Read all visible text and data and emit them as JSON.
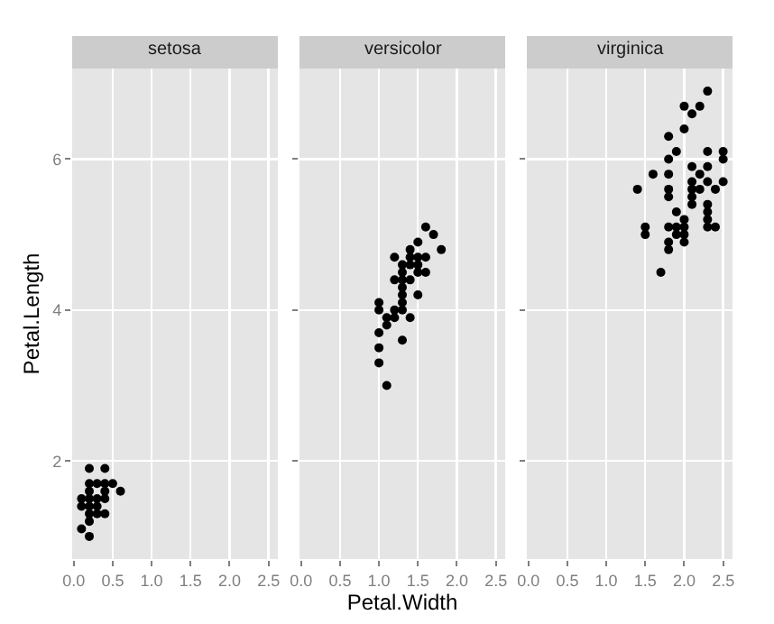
{
  "chart_data": [
    {
      "type": "scatter",
      "title": "setosa",
      "ylabel": "Petal.Length",
      "color": "#000000",
      "marker": "circle",
      "grid": true,
      "legend": false,
      "x": [
        0.1,
        0.1,
        0.1,
        0.2,
        0.2,
        0.2,
        0.2,
        0.2,
        0.2,
        0.2,
        0.2,
        0.3,
        0.3,
        0.3,
        0.3,
        0.4,
        0.4,
        0.4,
        0.4,
        0.4,
        0.5,
        0.6
      ],
      "values": [
        1.1,
        1.4,
        1.5,
        1.0,
        1.2,
        1.3,
        1.4,
        1.5,
        1.6,
        1.7,
        1.9,
        1.3,
        1.4,
        1.5,
        1.7,
        1.3,
        1.5,
        1.6,
        1.7,
        1.9,
        1.7,
        1.6
      ],
      "xlim": [
        -0.02,
        2.62
      ],
      "xticks": [
        {
          "value": 0,
          "label": "0.0"
        },
        0.5,
        {
          "value": 1,
          "label": "1.0"
        },
        1.5,
        {
          "value": 2,
          "label": "2.0"
        },
        2.5
      ],
      "ylim": [
        0.7,
        7.2
      ],
      "yticks": [
        2,
        4,
        6
      ]
    },
    {
      "type": "scatter",
      "title": "versicolor",
      "xlabel": "Petal.Width",
      "color": "#000000",
      "marker": "circle",
      "grid": true,
      "legend": false,
      "tick_labels": "x",
      "x": [
        1.0,
        1.0,
        1.0,
        1.0,
        1.0,
        1.1,
        1.1,
        1.1,
        1.2,
        1.2,
        1.2,
        1.2,
        1.3,
        1.3,
        1.3,
        1.3,
        1.3,
        1.3,
        1.3,
        1.3,
        1.4,
        1.4,
        1.4,
        1.4,
        1.4,
        1.5,
        1.5,
        1.5,
        1.5,
        1.5,
        1.6,
        1.6,
        1.6,
        1.7,
        1.8
      ],
      "values": [
        3.3,
        3.5,
        3.7,
        4.0,
        4.1,
        3.0,
        3.8,
        3.9,
        3.9,
        4.0,
        4.4,
        4.7,
        3.6,
        4.0,
        4.1,
        4.2,
        4.3,
        4.4,
        4.5,
        4.6,
        3.9,
        4.4,
        4.6,
        4.7,
        4.8,
        4.2,
        4.5,
        4.6,
        4.7,
        4.9,
        4.5,
        4.7,
        5.1,
        5.0,
        4.8
      ],
      "xlim": [
        -0.02,
        2.62
      ],
      "xticks": [
        {
          "value": 0,
          "label": "0.0"
        },
        0.5,
        {
          "value": 1,
          "label": "1.0"
        },
        1.5,
        {
          "value": 2,
          "label": "2.0"
        },
        2.5
      ],
      "ylim": [
        0.7,
        7.2
      ],
      "yticks": [
        2,
        4,
        6
      ]
    },
    {
      "type": "scatter",
      "title": "virginica",
      "color": "#000000",
      "marker": "circle",
      "grid": true,
      "legend": false,
      "tick_labels": "x",
      "x": [
        1.4,
        1.5,
        1.5,
        1.6,
        1.7,
        1.8,
        1.8,
        1.8,
        1.8,
        1.8,
        1.8,
        1.8,
        1.8,
        1.9,
        1.9,
        1.9,
        1.9,
        2.0,
        2.0,
        2.0,
        2.0,
        2.0,
        2.0,
        2.1,
        2.1,
        2.1,
        2.1,
        2.1,
        2.1,
        2.2,
        2.2,
        2.2,
        2.3,
        2.3,
        2.3,
        2.3,
        2.3,
        2.3,
        2.3,
        2.3,
        2.4,
        2.4,
        2.5,
        2.5,
        2.5
      ],
      "values": [
        5.6,
        5.0,
        5.1,
        5.8,
        4.5,
        4.8,
        4.9,
        5.1,
        5.5,
        5.6,
        5.8,
        6.0,
        6.3,
        5.0,
        5.1,
        5.3,
        6.1,
        4.9,
        5.0,
        5.1,
        5.2,
        6.4,
        6.7,
        5.4,
        5.5,
        5.6,
        5.7,
        5.9,
        6.6,
        5.6,
        5.8,
        6.7,
        5.1,
        5.2,
        5.3,
        5.4,
        5.7,
        5.9,
        6.1,
        6.9,
        5.1,
        5.6,
        5.7,
        6.0,
        6.1
      ],
      "xlim": [
        -0.02,
        2.62
      ],
      "xticks": [
        {
          "value": 0,
          "label": "0.0"
        },
        0.5,
        {
          "value": 1,
          "label": "1.0"
        },
        1.5,
        {
          "value": 2,
          "label": "2.0"
        },
        2.5
      ],
      "ylim": [
        0.7,
        7.2
      ],
      "yticks": [
        2,
        4,
        6
      ]
    }
  ]
}
